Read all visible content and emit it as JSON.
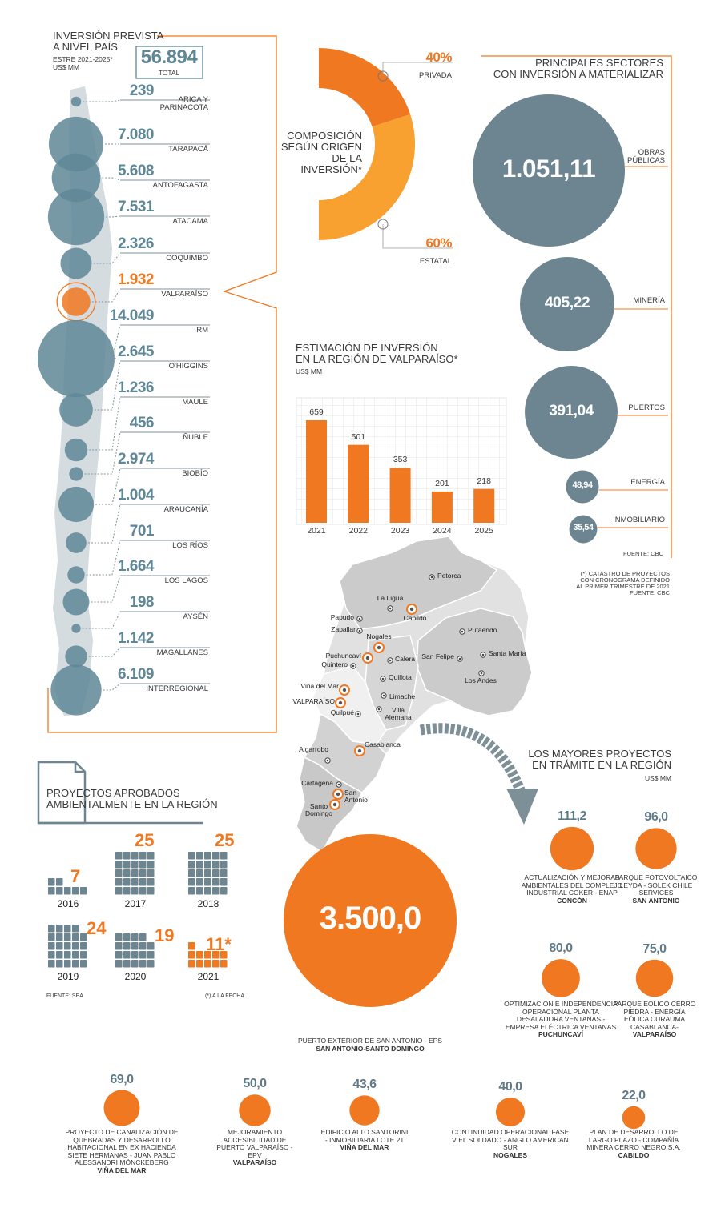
{
  "chart_data": [
    {
      "type": "bubble",
      "title": "INVERSIÓN PREVISTA\nA NIVEL PAÍS",
      "subtitle": "ESTRE 2021-2025*",
      "unit": "US$ MM",
      "total": 56894,
      "total_label": "56.894",
      "total_caption": "TOTAL",
      "categories": [
        "ARICA Y\nPARINACOTA",
        "TARAPACÁ",
        "ANTOFAGASTA",
        "ATACAMA",
        "COQUIMBO",
        "VALPARAÍSO",
        "RM",
        "O'HIGGINS",
        "MAULE",
        "ÑUBLE",
        "BIOBÍO",
        "ARAUCANÍA",
        "LOS RÍOS",
        "LOS LAGOS",
        "AYSÉN",
        "MAGALLANES",
        "INTERREGIONAL"
      ],
      "values": [
        239,
        7080,
        5608,
        7531,
        2326,
        1932,
        14049,
        2645,
        1236,
        456,
        2974,
        1004,
        701,
        1664,
        198,
        1142,
        6109
      ],
      "value_labels": [
        "239",
        "7.080",
        "5.608",
        "7.531",
        "2.326",
        "1.932",
        "14.049",
        "2.645",
        "1.236",
        "456",
        "2.974",
        "1.004",
        "701",
        "1.664",
        "198",
        "1.142",
        "6.109"
      ],
      "colors": [
        "#5f8796",
        "#5f8796",
        "#5f8796",
        "#5f8796",
        "#5f8796",
        "#f07820",
        "#5f8796",
        "#5f8796",
        "#5f8796",
        "#5f8796",
        "#5f8796",
        "#5f8796",
        "#5f8796",
        "#5f8796",
        "#5f8796",
        "#5f8796",
        "#5f8796"
      ]
    },
    {
      "type": "donut",
      "title": "COMPOSICIÓN\nSEGÚN ORIGEN\nDE LA\nINVERSIÓN*",
      "categories": [
        "PRIVADA",
        "ESTATAL"
      ],
      "values": [
        40,
        60
      ],
      "value_labels": [
        "40%",
        "60%"
      ],
      "colors": [
        "#f07820",
        "#f8a030"
      ]
    },
    {
      "type": "bubble",
      "title": "PRINCIPALES SECTORES\nCON INVERSIÓN A MATERIALIZAR",
      "categories": [
        "OBRAS\nPÚBLICAS",
        "MINERÍA",
        "PUERTOS",
        "ENERGÍA",
        "INMOBILIARIO"
      ],
      "values": [
        1051.11,
        405.22,
        391.04,
        48.94,
        35.54
      ],
      "value_labels": [
        "1.051,11",
        "405,22",
        "391,04",
        "48,94",
        "35,54"
      ],
      "color": "#6c8590",
      "source": "FUENTE: CBC"
    },
    {
      "type": "bar",
      "title": "ESTIMACIÓN DE INVERSIÓN\nEN LA REGIÓN DE VALPARAÍSO*",
      "subtitle": "US$ MM",
      "categories": [
        "2021",
        "2022",
        "2023",
        "2024",
        "2025"
      ],
      "values": [
        659,
        501,
        353,
        201,
        218
      ],
      "color": "#f07820",
      "ylim": [
        0,
        700
      ],
      "note": "(*) CATASTRO DE PROYECTOS\nCON CRONOGRAMA DEFINIDO\nAL PRIMER TRIMESTRE DE 2021\nFUENTE: CBC"
    },
    {
      "type": "pictogram",
      "title": "PROYECTOS APROBADOS\nAMBIENTALMENTE EN LA REGIÓN",
      "categories": [
        "2016",
        "2017",
        "2018",
        "2019",
        "2020",
        "2021"
      ],
      "values": [
        7,
        25,
        25,
        24,
        19,
        11
      ],
      "value_labels": [
        "7",
        "25",
        "25",
        "24",
        "19",
        "11*"
      ],
      "colors": [
        "#6c8590",
        "#6c8590",
        "#6c8590",
        "#6c8590",
        "#6c8590",
        "#f07820"
      ],
      "label_color": "#f07820",
      "source": "FUENTE: SEA",
      "note": "(*) A LA FECHA"
    },
    {
      "type": "bubble",
      "title": "LOS MAYORES PROYECTOS\nEN TRÁMITE EN LA REGIÓN",
      "subtitle": "US$ MM",
      "categories": [
        "PUERTO EXTERIOR DE SAN ANTONIO - EPS",
        "ACTUALIZACIÓN Y MEJORAS AMBIENTALES DEL COMPLEJO INDUSTRIAL COKER - ENAP",
        "PARQUE FOTOVOLTAICO LEYDA - SOLEK CHILE SERVICES",
        "OPTIMIZACIÓN E INDEPENDENCIA OPERACIONAL PLANTA DESALADORA VENTANAS - EMPRESA ELÉCTRICA VENTANAS",
        "PARQUE EÓLICO CERRO PIEDRA - ENERGÍA EÓLICA CURAUMA CASABLANCA-",
        "PROYECTO DE CANALIZACIÓN DE QUEBRADAS Y DESARROLLO HABITACIONAL EN EX HACIENDA SIETE HERMANAS - JUAN PABLO ALESSANDRI MÖNCKEBERG",
        "MEJORAMIENTO ACCESIBILIDAD DE PUERTO VALPARAÍSO - EPV",
        "EDIFICIO ALTO SANTORINI - INMOBILIARIA LOTE 21",
        "CONTINUIDAD OPERACIONAL FASE V EL SOLDADO - ANGLO AMERICAN SUR",
        "PLAN DE DESARROLLO DE LARGO PLAZO - COMPAÑÍA MINERA CERRO NEGRO S.A."
      ],
      "locations": [
        "SAN ANTONIO-SANTO DOMINGO",
        "CONCÓN",
        "SAN ANTONIO",
        "PUCHUNCAVÍ",
        "VALPARAÍSO",
        "VIÑA DEL MAR",
        "VALPARAÍSO",
        "VIÑA DEL MAR",
        "NOGALES",
        "CABILDO"
      ],
      "values": [
        3500,
        111.2,
        96,
        80,
        75,
        69,
        50,
        43.6,
        40,
        22
      ],
      "value_labels": [
        "3.500,0",
        "111,2",
        "96,0",
        "80,0",
        "75,0",
        "69,0",
        "50,0",
        "43,6",
        "40,0",
        "22,0"
      ],
      "color": "#f07820"
    }
  ],
  "map": {
    "cities": [
      {
        "name": "Petorca",
        "highlight": false
      },
      {
        "name": "La Ligua",
        "highlight": false
      },
      {
        "name": "Cabildo",
        "highlight": true
      },
      {
        "name": "Papudo",
        "highlight": false
      },
      {
        "name": "Zapallar",
        "highlight": false
      },
      {
        "name": "Nogales",
        "highlight": true
      },
      {
        "name": "Puchuncaví",
        "highlight": true
      },
      {
        "name": "Calera",
        "highlight": false
      },
      {
        "name": "Quintero",
        "highlight": false
      },
      {
        "name": "Putaendo",
        "highlight": false
      },
      {
        "name": "San Felipe",
        "highlight": false
      },
      {
        "name": "Santa María",
        "highlight": false
      },
      {
        "name": "Quillota",
        "highlight": false
      },
      {
        "name": "Los Andes",
        "highlight": false
      },
      {
        "name": "Viña del Mar",
        "highlight": true
      },
      {
        "name": "Limache",
        "highlight": false
      },
      {
        "name": "VALPARAÍSO",
        "highlight": true
      },
      {
        "name": "Quilpué",
        "highlight": false
      },
      {
        "name": "Villa\nAlemana",
        "highlight": false
      },
      {
        "name": "Casablanca",
        "highlight": true
      },
      {
        "name": "Algarrobo",
        "highlight": false
      },
      {
        "name": "Cartagena",
        "highlight": false
      },
      {
        "name": "San\nAntonio",
        "highlight": true
      },
      {
        "name": "Santo\nDomingo",
        "highlight": true
      }
    ]
  }
}
